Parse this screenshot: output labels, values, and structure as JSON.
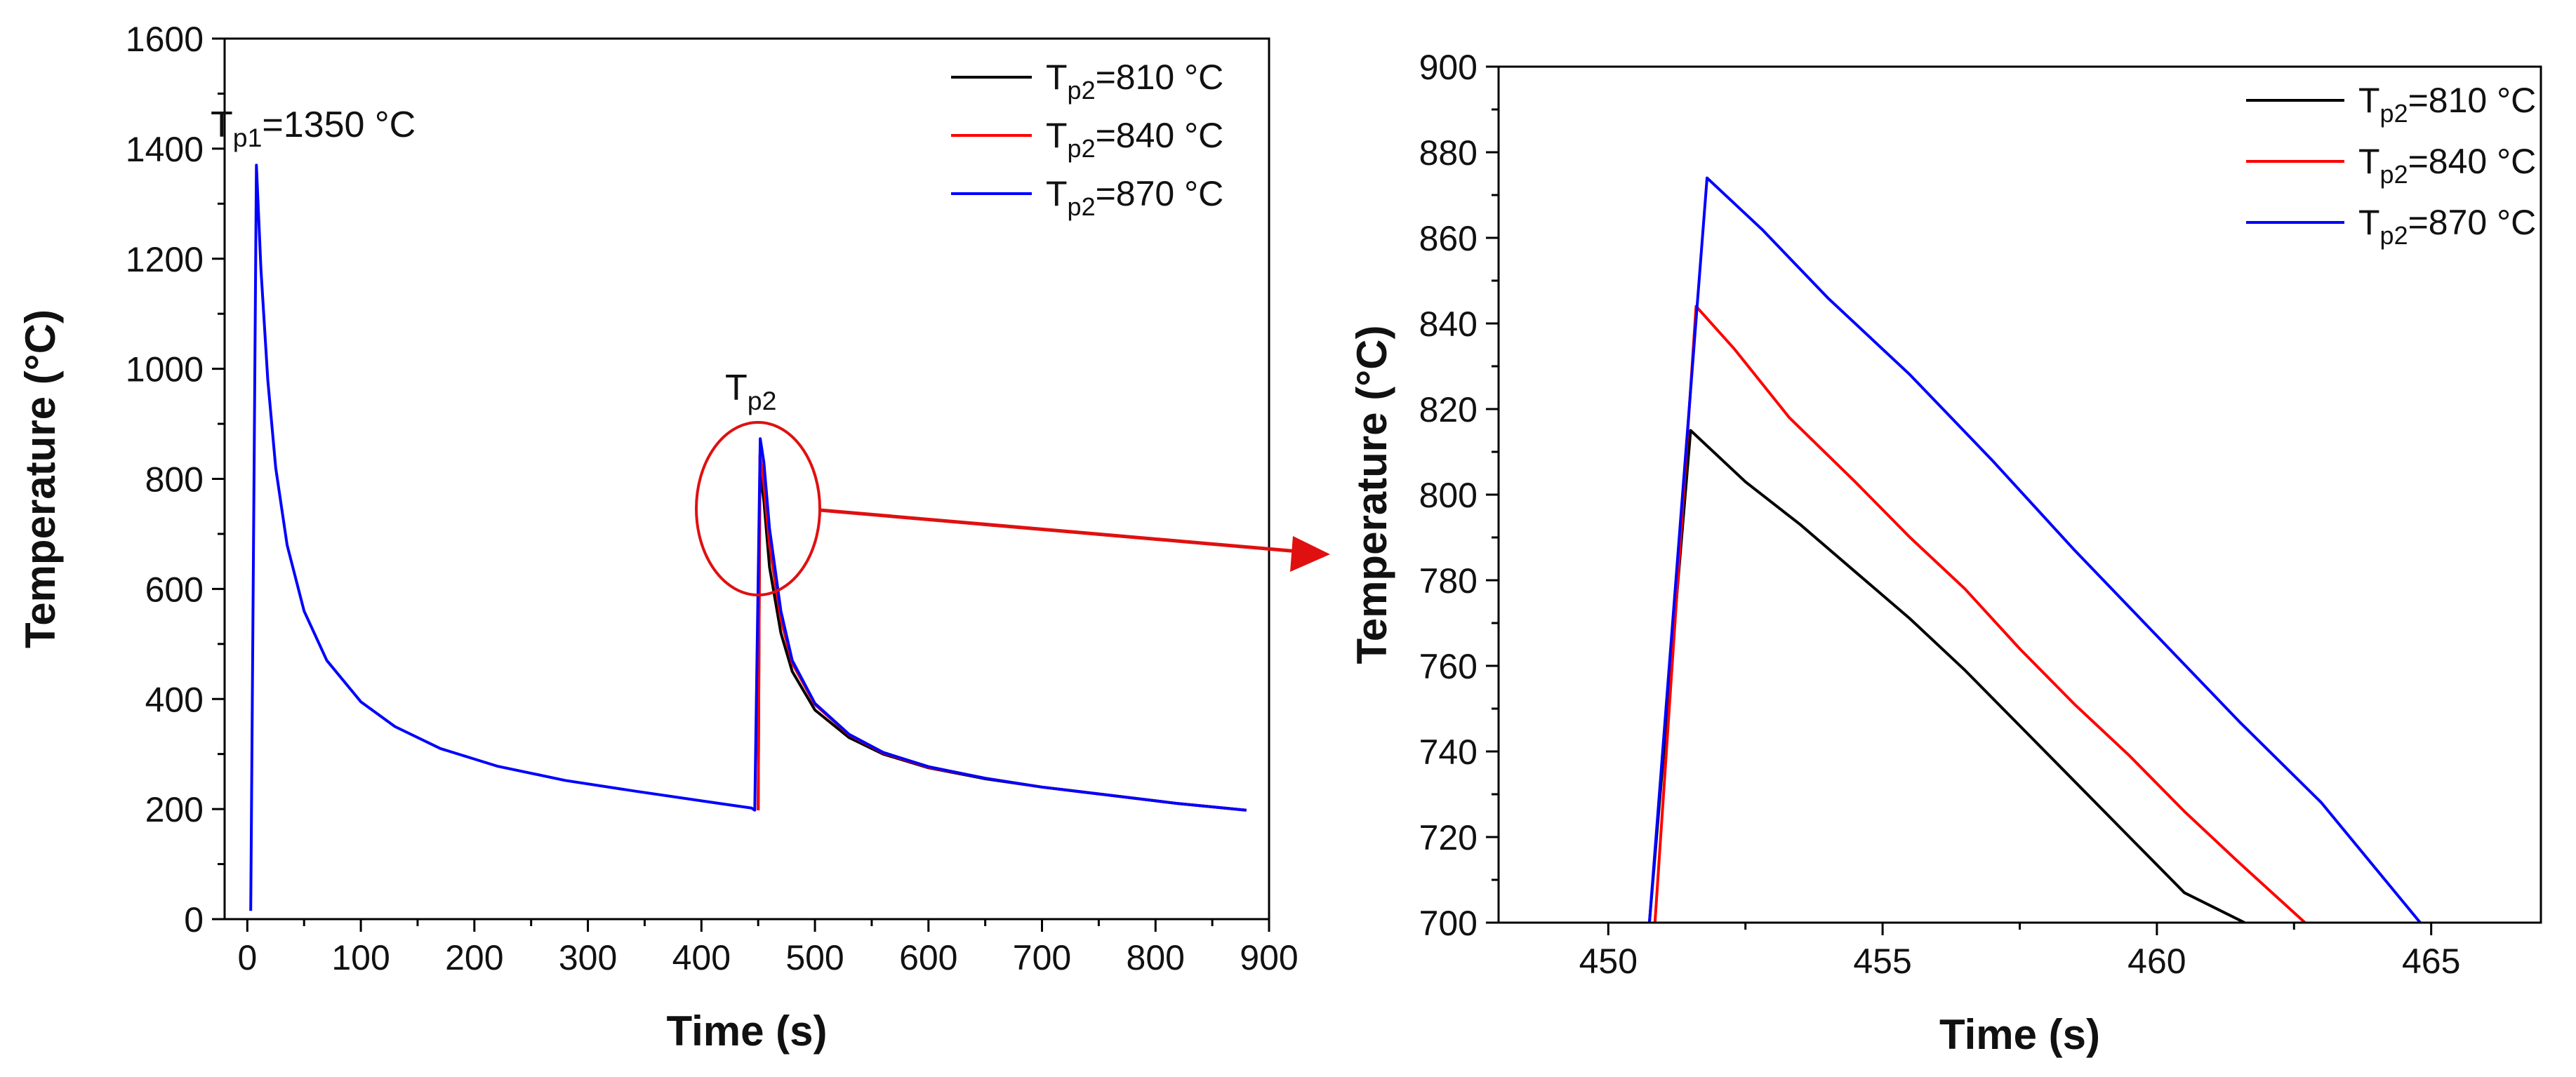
{
  "chart_data": [
    {
      "type": "line",
      "xlabel": "Time (s)",
      "ylabel": "Temperature (°C)",
      "xlim": [
        -20,
        900
      ],
      "ylim": [
        0,
        1600
      ],
      "xticks": [
        0,
        100,
        200,
        300,
        400,
        500,
        600,
        700,
        800,
        900
      ],
      "xtick_labels": [
        "0",
        "100",
        "200",
        "300",
        "400",
        "500",
        "600",
        "700",
        "800",
        "900"
      ],
      "yticks": [
        0,
        200,
        400,
        600,
        800,
        1000,
        1200,
        1400,
        1600
      ],
      "ytick_labels": [
        "0",
        "200",
        "400",
        "600",
        "800",
        "1000",
        "1200",
        "1400",
        "1600"
      ],
      "legend": {
        "position": "top-right",
        "entries": [
          {
            "base": "T",
            "sub": "p2",
            "text": "=810 °C",
            "color": "#000000"
          },
          {
            "base": "T",
            "sub": "p2",
            "text": "=840 °C",
            "color": "#ff0000"
          },
          {
            "base": "T",
            "sub": "p2",
            "text": "=870 °C",
            "color": "#0000ff"
          }
        ]
      },
      "annotations": {
        "tp1": {
          "base": "T",
          "sub": "p1",
          "text": "=1350 °C"
        },
        "tp2": {
          "base": "T",
          "sub": "p2",
          "text": ""
        }
      },
      "series": [
        {
          "name": "Tp2=810 °C",
          "color": "#000000",
          "points": [
            [
              450,
              198
            ],
            [
              451.5,
              815
            ],
            [
              455,
              760
            ],
            [
              460,
              640
            ],
            [
              470,
              520
            ],
            [
              480,
              450
            ],
            [
              500,
              380
            ],
            [
              530,
              330
            ],
            [
              560,
              300
            ],
            [
              600,
              275
            ],
            [
              650,
              255
            ],
            [
              700,
              240
            ],
            [
              760,
              225
            ],
            [
              820,
              210
            ],
            [
              880,
              198
            ]
          ]
        },
        {
          "name": "Tp2=840 °C",
          "color": "#ff0000",
          "points": [
            [
              450,
              198
            ],
            [
              451.5,
              843
            ],
            [
              455,
              790
            ],
            [
              460,
              680
            ],
            [
              470,
              545
            ],
            [
              480,
              465
            ],
            [
              500,
              390
            ],
            [
              530,
              335
            ],
            [
              560,
              302
            ],
            [
              600,
              276
            ],
            [
              650,
              256
            ],
            [
              700,
              240
            ],
            [
              760,
              225
            ],
            [
              820,
              210
            ],
            [
              880,
              198
            ]
          ]
        },
        {
          "name": "Tp2=870 °C",
          "color": "#0000ff",
          "points": [
            [
              3,
              15
            ],
            [
              8,
              1370
            ],
            [
              12,
              1180
            ],
            [
              18,
              980
            ],
            [
              25,
              820
            ],
            [
              35,
              680
            ],
            [
              50,
              560
            ],
            [
              70,
              470
            ],
            [
              100,
              395
            ],
            [
              130,
              350
            ],
            [
              170,
              310
            ],
            [
              220,
              278
            ],
            [
              280,
              252
            ],
            [
              340,
              233
            ],
            [
              400,
              215
            ],
            [
              444,
              202
            ],
            [
              447,
              198
            ],
            [
              451.8,
              873
            ],
            [
              455,
              830
            ],
            [
              460,
              710
            ],
            [
              470,
              560
            ],
            [
              480,
              470
            ],
            [
              500,
              392
            ],
            [
              530,
              336
            ],
            [
              560,
              303
            ],
            [
              600,
              277
            ],
            [
              650,
              256
            ],
            [
              700,
              240
            ],
            [
              760,
              225
            ],
            [
              820,
              210
            ],
            [
              880,
              198
            ]
          ]
        }
      ]
    },
    {
      "type": "line",
      "xlabel": "Time (s)",
      "ylabel": "Temperature (°C)",
      "xlim": [
        448,
        467
      ],
      "ylim": [
        700,
        900
      ],
      "xticks": [
        450,
        455,
        460,
        465
      ],
      "xtick_labels": [
        "450",
        "455",
        "460",
        "465"
      ],
      "yticks": [
        700,
        720,
        740,
        760,
        780,
        800,
        820,
        840,
        860,
        880,
        900
      ],
      "ytick_labels": [
        "700",
        "720",
        "740",
        "760",
        "780",
        "800",
        "820",
        "840",
        "860",
        "880",
        "900"
      ],
      "legend": {
        "position": "top-right",
        "entries": [
          {
            "base": "T",
            "sub": "p2",
            "text": "=810 °C",
            "color": "#000000"
          },
          {
            "base": "T",
            "sub": "p2",
            "text": "=840 °C",
            "color": "#ff0000"
          },
          {
            "base": "T",
            "sub": "p2",
            "text": "=870 °C",
            "color": "#0000ff"
          }
        ]
      },
      "series": [
        {
          "name": "Tp2=810 °C",
          "color": "#000000",
          "points": [
            [
              450.75,
              700
            ],
            [
              451.5,
              815
            ],
            [
              452.5,
              803
            ],
            [
              453.5,
              793
            ],
            [
              454.5,
              782
            ],
            [
              455.5,
              771
            ],
            [
              456.5,
              759
            ],
            [
              457.5,
              746
            ],
            [
              458.5,
              733
            ],
            [
              459.5,
              720
            ],
            [
              460.5,
              707
            ],
            [
              461.6,
              700
            ]
          ]
        },
        {
          "name": "Tp2=840 °C",
          "color": "#ff0000",
          "points": [
            [
              450.85,
              700
            ],
            [
              451.6,
              844
            ],
            [
              452.3,
              834
            ],
            [
              453.3,
              818
            ],
            [
              454.5,
              803
            ],
            [
              455.5,
              790
            ],
            [
              456.5,
              778
            ],
            [
              457.5,
              764
            ],
            [
              458.5,
              751
            ],
            [
              459.5,
              739
            ],
            [
              460.5,
              726
            ],
            [
              461.5,
              714
            ],
            [
              462.7,
              700
            ]
          ]
        },
        {
          "name": "Tp2=870 °C",
          "color": "#0000ff",
          "points": [
            [
              450.75,
              700
            ],
            [
              451.8,
              874
            ],
            [
              452.8,
              862
            ],
            [
              454,
              846
            ],
            [
              455.5,
              828
            ],
            [
              457,
              808
            ],
            [
              458.5,
              787
            ],
            [
              460,
              767
            ],
            [
              461.5,
              747
            ],
            [
              463,
              728
            ],
            [
              464.8,
              700
            ]
          ]
        }
      ]
    }
  ]
}
